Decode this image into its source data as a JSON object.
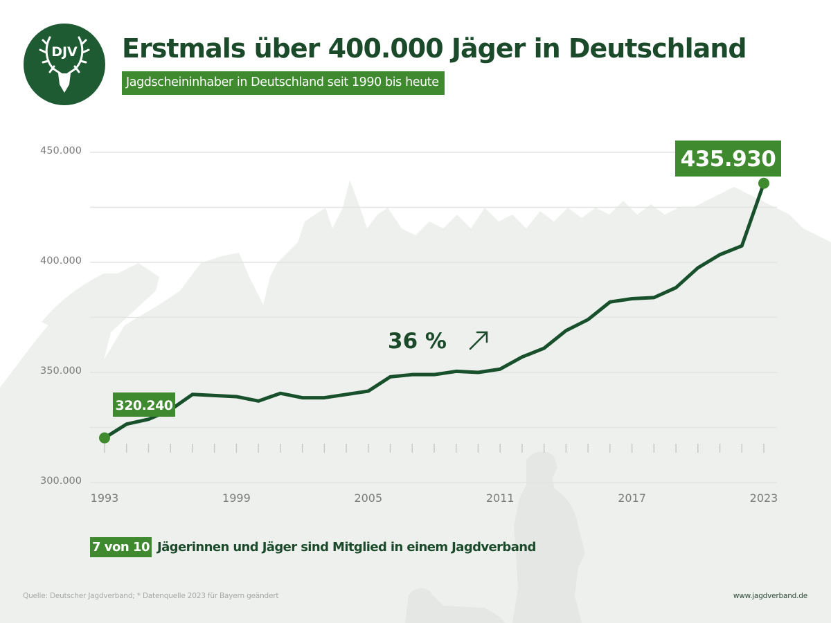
{
  "header": {
    "logo_text": "DJV",
    "title": "Erstmals über 400.000 Jäger in Deutschland",
    "subtitle": "Jagdscheininhaber in Deutschland seit 1990 bis heute"
  },
  "colors": {
    "dark_green": "#1a4a2a",
    "line_green": "#17502b",
    "accent_green": "#3f8a2e",
    "logo_green": "#1e5a32",
    "silhouette": "#eef0ee",
    "grid": "#e2e4e2",
    "axis_text": "#7a7c7a"
  },
  "chart_data": {
    "type": "line",
    "title": "Erstmals über 400.000 Jäger in Deutschland",
    "subtitle": "Jagdscheininhaber in Deutschland seit 1990 bis heute",
    "xlabel": "",
    "ylabel": "",
    "ylim": [
      300000,
      450000
    ],
    "xlim": [
      1993,
      2023
    ],
    "grid": true,
    "y_ticks": [
      300000,
      350000,
      400000,
      450000
    ],
    "y_tick_labels": [
      "300.000",
      "350.000",
      "400.000",
      "450.000"
    ],
    "y_minor_gridlines": [
      325000,
      375000,
      425000
    ],
    "x_tick_labels": [
      "1993",
      "1999",
      "2005",
      "2011",
      "2017",
      "2023"
    ],
    "x_tick_values": [
      1993,
      1999,
      2005,
      2011,
      2017,
      2023
    ],
    "series": [
      {
        "name": "Jagdscheininhaber",
        "x": [
          1993,
          1994,
          1995,
          1996,
          1997,
          1998,
          1999,
          2000,
          2001,
          2002,
          2003,
          2004,
          2005,
          2006,
          2007,
          2008,
          2009,
          2010,
          2011,
          2012,
          2013,
          2014,
          2015,
          2016,
          2017,
          2018,
          2019,
          2020,
          2021,
          2022,
          2023
        ],
        "values": [
          320240,
          326500,
          328700,
          333000,
          340000,
          339500,
          339000,
          337000,
          340500,
          338500,
          338500,
          340000,
          341500,
          348000,
          349000,
          349000,
          350500,
          350000,
          351500,
          357000,
          361000,
          369000,
          374000,
          382000,
          383500,
          384000,
          388500,
          397500,
          403500,
          407500,
          435930
        ]
      }
    ],
    "annotations": [
      {
        "label": "start-value",
        "text": "320.240",
        "x": 1993,
        "value": 320240
      },
      {
        "label": "end-value",
        "text": "435.930",
        "x": 2023,
        "value": 435930
      },
      {
        "label": "growth",
        "text": "36 %",
        "icon": "arrow-up-right-icon"
      }
    ]
  },
  "membership": {
    "badge": "7 von 10",
    "text": "Jägerinnen und Jäger sind Mitglied in einem Jagdverband"
  },
  "footer": {
    "source": "Quelle: Deutscher Jagdverband; * Datenquelle 2023 für Bayern geändert",
    "website": "www.jagdverband.de"
  }
}
